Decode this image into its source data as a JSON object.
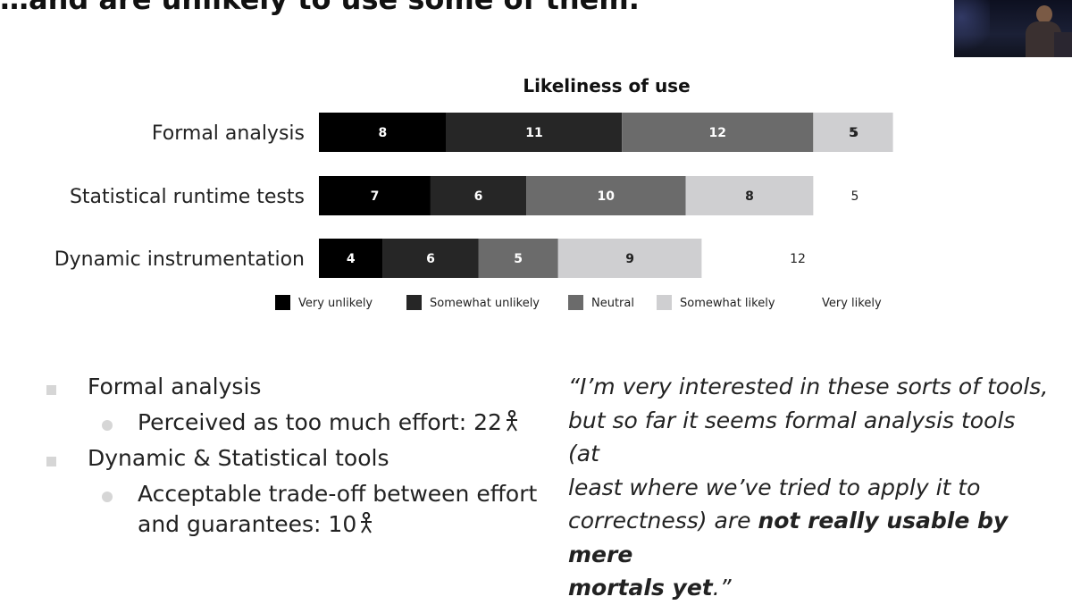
{
  "slide": {
    "headline": "…and are unlikely to use some of them."
  },
  "chart_data": {
    "type": "bar",
    "orientation": "horizontal",
    "stacked": true,
    "title": "Likeliness of use",
    "categories": [
      "Formal analysis",
      "Statistical runtime tests",
      "Dynamic instrumentation"
    ],
    "series": [
      {
        "name": "Very unlikely",
        "color": "#000000",
        "values": [
          8,
          7,
          4
        ]
      },
      {
        "name": "Somewhat unlikely",
        "color": "#262626",
        "values": [
          11,
          6,
          6
        ]
      },
      {
        "name": "Neutral",
        "color": "#6b6b6b",
        "values": [
          12,
          10,
          5
        ]
      },
      {
        "name": "Somewhat likely",
        "color": "#cfcfd1",
        "values": [
          5,
          8,
          9
        ]
      },
      {
        "name": "Very likely",
        "color": "#ffffff",
        "values": [
          0,
          5,
          12
        ]
      }
    ],
    "outside_labels": [
      "5",
      "5",
      "12"
    ],
    "grid": false,
    "legend": "bottom"
  },
  "bullets": {
    "item1": "Formal analysis",
    "item1_sub": "Perceived as too much effort: 22",
    "item2": "Dynamic & Statistical tools",
    "item2_sub_line1": "Acceptable trade-off between effort",
    "item2_sub_line2": "and guarantees: 10"
  },
  "quote": {
    "part1": "“I’m very interested in these sorts of tools,",
    "part2": "but so far it seems formal analysis tools (at",
    "part3": "least where we’ve tried to apply it to",
    "part4": "correctness) are ",
    "emphasis_1": "not really usable by mere",
    "emphasis_2": "mortals yet",
    "end": ".”"
  },
  "icons": {
    "person": "person-icon"
  }
}
